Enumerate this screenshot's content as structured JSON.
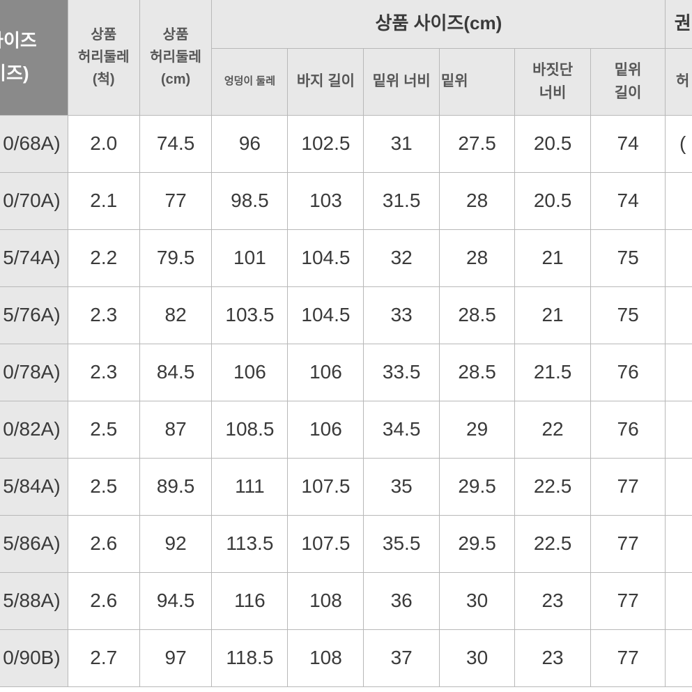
{
  "headers": {
    "size_main_line1": "로 사이즈",
    "size_main_line2": "사이즈)",
    "waist_chi_line1": "상품",
    "waist_chi_line2": "허리둘레",
    "waist_chi_line3": "(척)",
    "waist_cm_line1": "상품",
    "waist_cm_line2": "허리둘레",
    "waist_cm_line3": "(cm)",
    "product_size_group": "상품 사이즈(cm)",
    "right_group": "권",
    "sub_hip": "엉덩이 둘레",
    "sub_length": "바지 길이",
    "sub_thigh": "밑위 너비",
    "sub_rise": "밑위",
    "sub_hem_line1": "바짓단",
    "sub_hem_line2": "너비",
    "sub_inseam_line1": "밑위",
    "sub_inseam_line2": "길이",
    "sub_right": "허"
  },
  "rows": [
    {
      "size": "0/68A)",
      "chi": "2.0",
      "cm": "74.5",
      "hip": "96",
      "length": "102.5",
      "thigh": "31",
      "rise": "27.5",
      "hem": "20.5",
      "inseam": "74",
      "r": "("
    },
    {
      "size": "0/70A)",
      "chi": "2.1",
      "cm": "77",
      "hip": "98.5",
      "length": "103",
      "thigh": "31.5",
      "rise": "28",
      "hem": "20.5",
      "inseam": "74",
      "r": ""
    },
    {
      "size": "5/74A)",
      "chi": "2.2",
      "cm": "79.5",
      "hip": "101",
      "length": "104.5",
      "thigh": "32",
      "rise": "28",
      "hem": "21",
      "inseam": "75",
      "r": ""
    },
    {
      "size": "5/76A)",
      "chi": "2.3",
      "cm": "82",
      "hip": "103.5",
      "length": "104.5",
      "thigh": "33",
      "rise": "28.5",
      "hem": "21",
      "inseam": "75",
      "r": ""
    },
    {
      "size": "0/78A)",
      "chi": "2.3",
      "cm": "84.5",
      "hip": "106",
      "length": "106",
      "thigh": "33.5",
      "rise": "28.5",
      "hem": "21.5",
      "inseam": "76",
      "r": ""
    },
    {
      "size": "0/82A)",
      "chi": "2.5",
      "cm": "87",
      "hip": "108.5",
      "length": "106",
      "thigh": "34.5",
      "rise": "29",
      "hem": "22",
      "inseam": "76",
      "r": ""
    },
    {
      "size": "5/84A)",
      "chi": "2.5",
      "cm": "89.5",
      "hip": "111",
      "length": "107.5",
      "thigh": "35",
      "rise": "29.5",
      "hem": "22.5",
      "inseam": "77",
      "r": ""
    },
    {
      "size": "5/86A)",
      "chi": "2.6",
      "cm": "92",
      "hip": "113.5",
      "length": "107.5",
      "thigh": "35.5",
      "rise": "29.5",
      "hem": "22.5",
      "inseam": "77",
      "r": ""
    },
    {
      "size": "5/88A)",
      "chi": "2.6",
      "cm": "94.5",
      "hip": "116",
      "length": "108",
      "thigh": "36",
      "rise": "30",
      "hem": "23",
      "inseam": "77",
      "r": ""
    },
    {
      "size": "0/90B)",
      "chi": "2.7",
      "cm": "97",
      "hip": "118.5",
      "length": "108",
      "thigh": "37",
      "rise": "30",
      "hem": "23",
      "inseam": "77",
      "r": ""
    }
  ]
}
